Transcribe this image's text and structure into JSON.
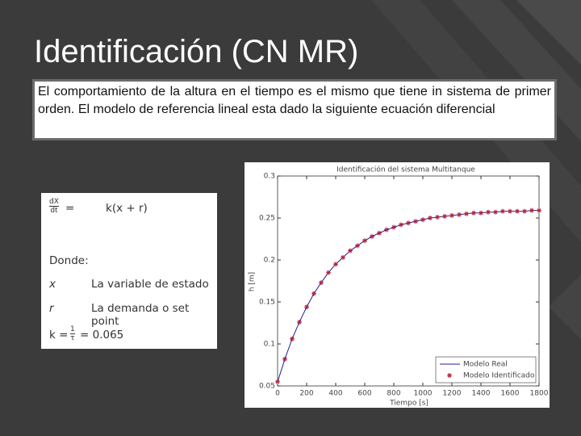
{
  "slide": {
    "title": "Identificación (CN MR)",
    "text": "El comportamiento de la altura en el tiempo es el mismo que tiene in sistema de primer orden. El modelo de referencia lineal esta dado la siguiente ecuación diferencial",
    "equation": {
      "numerator": "dX",
      "denominator": "dt",
      "equals": "=",
      "rhs": "k(x + r)"
    },
    "where": "Donde:",
    "definitions": [
      [
        "x",
        "La variable de estado"
      ],
      [
        "r",
        "La demanda o set point"
      ]
    ],
    "k_equation": {
      "lhs": "k =",
      "numerator": "1",
      "denominator": "τ",
      "rhs": "= 0.065"
    }
  },
  "chart_data": {
    "type": "line",
    "title": "Identificación del sistema Multitanque",
    "x_label": "Tiempo [s]",
    "y_label": "h [m]",
    "xlim": [
      0,
      1800
    ],
    "ylim": [
      0.05,
      0.3
    ],
    "xticks": [
      0,
      200,
      400,
      600,
      800,
      1000,
      1200,
      1400,
      1600,
      1800
    ],
    "yticks": [
      0.05,
      0.1,
      0.15,
      0.2,
      0.25,
      0.3
    ],
    "legend": "lower right",
    "x": [
      0,
      50,
      100,
      150,
      200,
      250,
      300,
      350,
      400,
      450,
      500,
      550,
      600,
      650,
      700,
      750,
      800,
      850,
      900,
      950,
      1000,
      1050,
      1100,
      1150,
      1200,
      1250,
      1300,
      1350,
      1400,
      1450,
      1500,
      1550,
      1600,
      1650,
      1700,
      1750,
      1800
    ],
    "series": [
      {
        "name": "Modelo Real",
        "color": "#1f1f9f",
        "style": "line",
        "values": [
          0.055,
          0.082,
          0.106,
          0.126,
          0.144,
          0.16,
          0.173,
          0.185,
          0.195,
          0.203,
          0.211,
          0.217,
          0.223,
          0.228,
          0.232,
          0.236,
          0.239,
          0.242,
          0.244,
          0.246,
          0.248,
          0.25,
          0.251,
          0.252,
          0.253,
          0.254,
          0.255,
          0.256,
          0.256,
          0.257,
          0.257,
          0.258,
          0.258,
          0.258,
          0.258,
          0.259,
          0.259
        ]
      },
      {
        "name": "Modelo Identificado",
        "color": "#b0203a",
        "style": "marker",
        "values": [
          0.055,
          0.082,
          0.106,
          0.126,
          0.144,
          0.16,
          0.173,
          0.185,
          0.195,
          0.203,
          0.211,
          0.217,
          0.223,
          0.228,
          0.232,
          0.236,
          0.239,
          0.242,
          0.244,
          0.246,
          0.248,
          0.25,
          0.251,
          0.252,
          0.253,
          0.254,
          0.255,
          0.256,
          0.256,
          0.257,
          0.257,
          0.258,
          0.258,
          0.258,
          0.258,
          0.259,
          0.259
        ]
      }
    ]
  }
}
